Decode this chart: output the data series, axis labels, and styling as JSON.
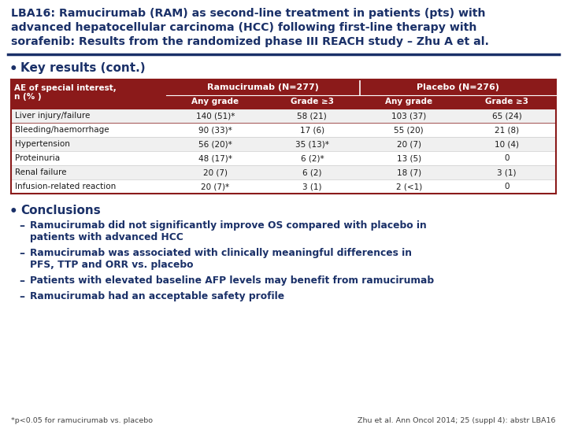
{
  "title_lines": [
    "LBA16: Ramucirumab (RAM) as second-line treatment in patients (pts) with",
    "advanced hepatocellular carcinoma (HCC) following first-line therapy with",
    "sorafenib: Results from the randomized phase III REACH study – Zhu A et al."
  ],
  "title_color": "#1a3068",
  "bg_color": "#ffffff",
  "bullet1": "Key results (cont.)",
  "bullet2": "Conclusions",
  "table_header_bg": "#8b1a1a",
  "table_header_color": "#ffffff",
  "table_border_color": "#8b1a1a",
  "table_row_bg_odd": "#f0f0f0",
  "table_row_bg_even": "#ffffff",
  "table_col1_header": "AE of special interest,\nn (% )",
  "table_ram_header": "Ramucirumab (N=277)",
  "table_pla_header": "Placebo (N=276)",
  "table_sub_cols": [
    "Any grade",
    "Grade ≥3",
    "Any grade",
    "Grade ≥3"
  ],
  "table_rows": [
    [
      "Liver injury/failure",
      "140 (51)*",
      "58 (21)",
      "103 (37)",
      "65 (24)"
    ],
    [
      "Bleeding/haemorrhage",
      "90 (33)*",
      "17 (6)",
      "55 (20)",
      "21 (8)"
    ],
    [
      "Hypertension",
      "56 (20)*",
      "35 (13)*",
      "20 (7)",
      "10 (4)"
    ],
    [
      "Proteinuria",
      "48 (17)*",
      "6 (2)*",
      "13 (5)",
      "0"
    ],
    [
      "Renal failure",
      "20 (7)",
      "6 (2)",
      "18 (7)",
      "3 (1)"
    ],
    [
      "Infusion-related reaction",
      "20 (7)*",
      "3 (1)",
      "2 (<1)",
      "0"
    ]
  ],
  "conclusions": [
    [
      "Ramucirumab did not significantly improve OS compared with placebo in",
      "patients with advanced HCC"
    ],
    [
      "Ramucirumab was associated with clinically meaningful differences in",
      "PFS, TTP and ORR vs. placebo"
    ],
    [
      "Patients with elevated baseline AFP levels may benefit from ramucirumab"
    ],
    [
      "Ramucirumab had an acceptable safety profile"
    ]
  ],
  "footnote_left": "*p<0.05 for ramucirumab vs. placebo",
  "footnote_right": "Zhu et al. Ann Oncol 2014; 25 (suppl 4): abstr LBA16",
  "dark_blue": "#1a3068",
  "dark_red": "#8b1a1a"
}
